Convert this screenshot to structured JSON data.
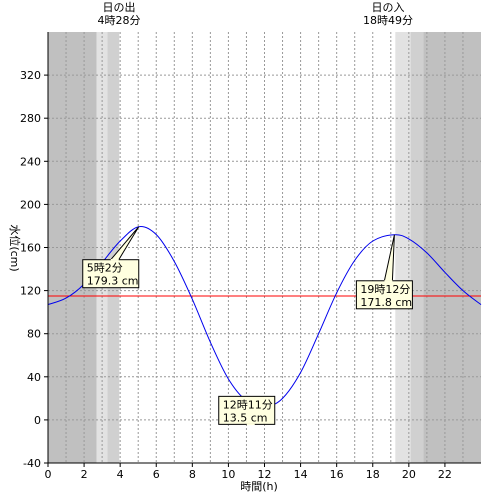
{
  "sun": {
    "sunrise_label": "日の出",
    "sunrise_time": "4時28分",
    "sunset_label": "日の入",
    "sunset_time": "18時49分"
  },
  "chart_data": {
    "type": "line",
    "xlabel": "時間(h)",
    "ylabel": "水位(cm)",
    "xlim": [
      0,
      24
    ],
    "ylim": [
      -40,
      360
    ],
    "x_ticks": [
      0,
      2,
      4,
      6,
      8,
      10,
      12,
      14,
      16,
      18,
      20,
      22
    ],
    "x_tick_labels": [
      "0",
      "2",
      "4",
      "6",
      "8",
      "10",
      "12",
      "14",
      "16",
      "18",
      "20",
      "22"
    ],
    "y_ticks": [
      -40,
      0,
      40,
      80,
      120,
      160,
      200,
      240,
      280,
      320
    ],
    "y_tick_labels": [
      "-40",
      "0",
      "40",
      "80",
      "120",
      "160",
      "200",
      "240",
      "280",
      "320"
    ],
    "grid": true,
    "series": [
      {
        "color": "#0000ee",
        "x": [
          0,
          1,
          2,
          3,
          4,
          5.03,
          6,
          7,
          8,
          9,
          10,
          11,
          12.18,
          13,
          14,
          15,
          16,
          17,
          18,
          19.2,
          20,
          21,
          22,
          23,
          24
        ],
        "y": [
          107,
          113,
          126,
          146,
          166,
          179.3,
          172,
          147,
          112,
          72,
          38,
          18,
          13.5,
          20,
          44,
          80,
          118,
          148,
          166,
          171.8,
          168,
          155,
          137,
          120,
          107
        ]
      }
    ],
    "reference_line": {
      "y": 115,
      "color": "#ff0000"
    },
    "shading": {
      "night_color": "#c0c0c0",
      "twilight_color": "#d8d8d8",
      "day_color": "#ffffff",
      "bands": [
        {
          "from": 0,
          "to": 2.7,
          "kind": "night"
        },
        {
          "from": 2.7,
          "to": 3.3,
          "kind": "twilight"
        },
        {
          "from": 3.3,
          "to": 3.95,
          "kind": "twilight"
        },
        {
          "from": 19.25,
          "to": 20.1,
          "kind": "twilight"
        },
        {
          "from": 20.1,
          "to": 20.8,
          "kind": "twilight"
        },
        {
          "from": 20.8,
          "to": 24,
          "kind": "night"
        }
      ]
    },
    "annotations": [
      {
        "time": "5時2分",
        "value": "179.3 cm",
        "x": 5.03,
        "y": 179.3
      },
      {
        "time": "12時11分",
        "value": "13.5 cm",
        "x": 12.18,
        "y": 13.5
      },
      {
        "time": "19時12分",
        "value": "171.8 cm",
        "x": 19.2,
        "y": 171.8
      }
    ]
  }
}
